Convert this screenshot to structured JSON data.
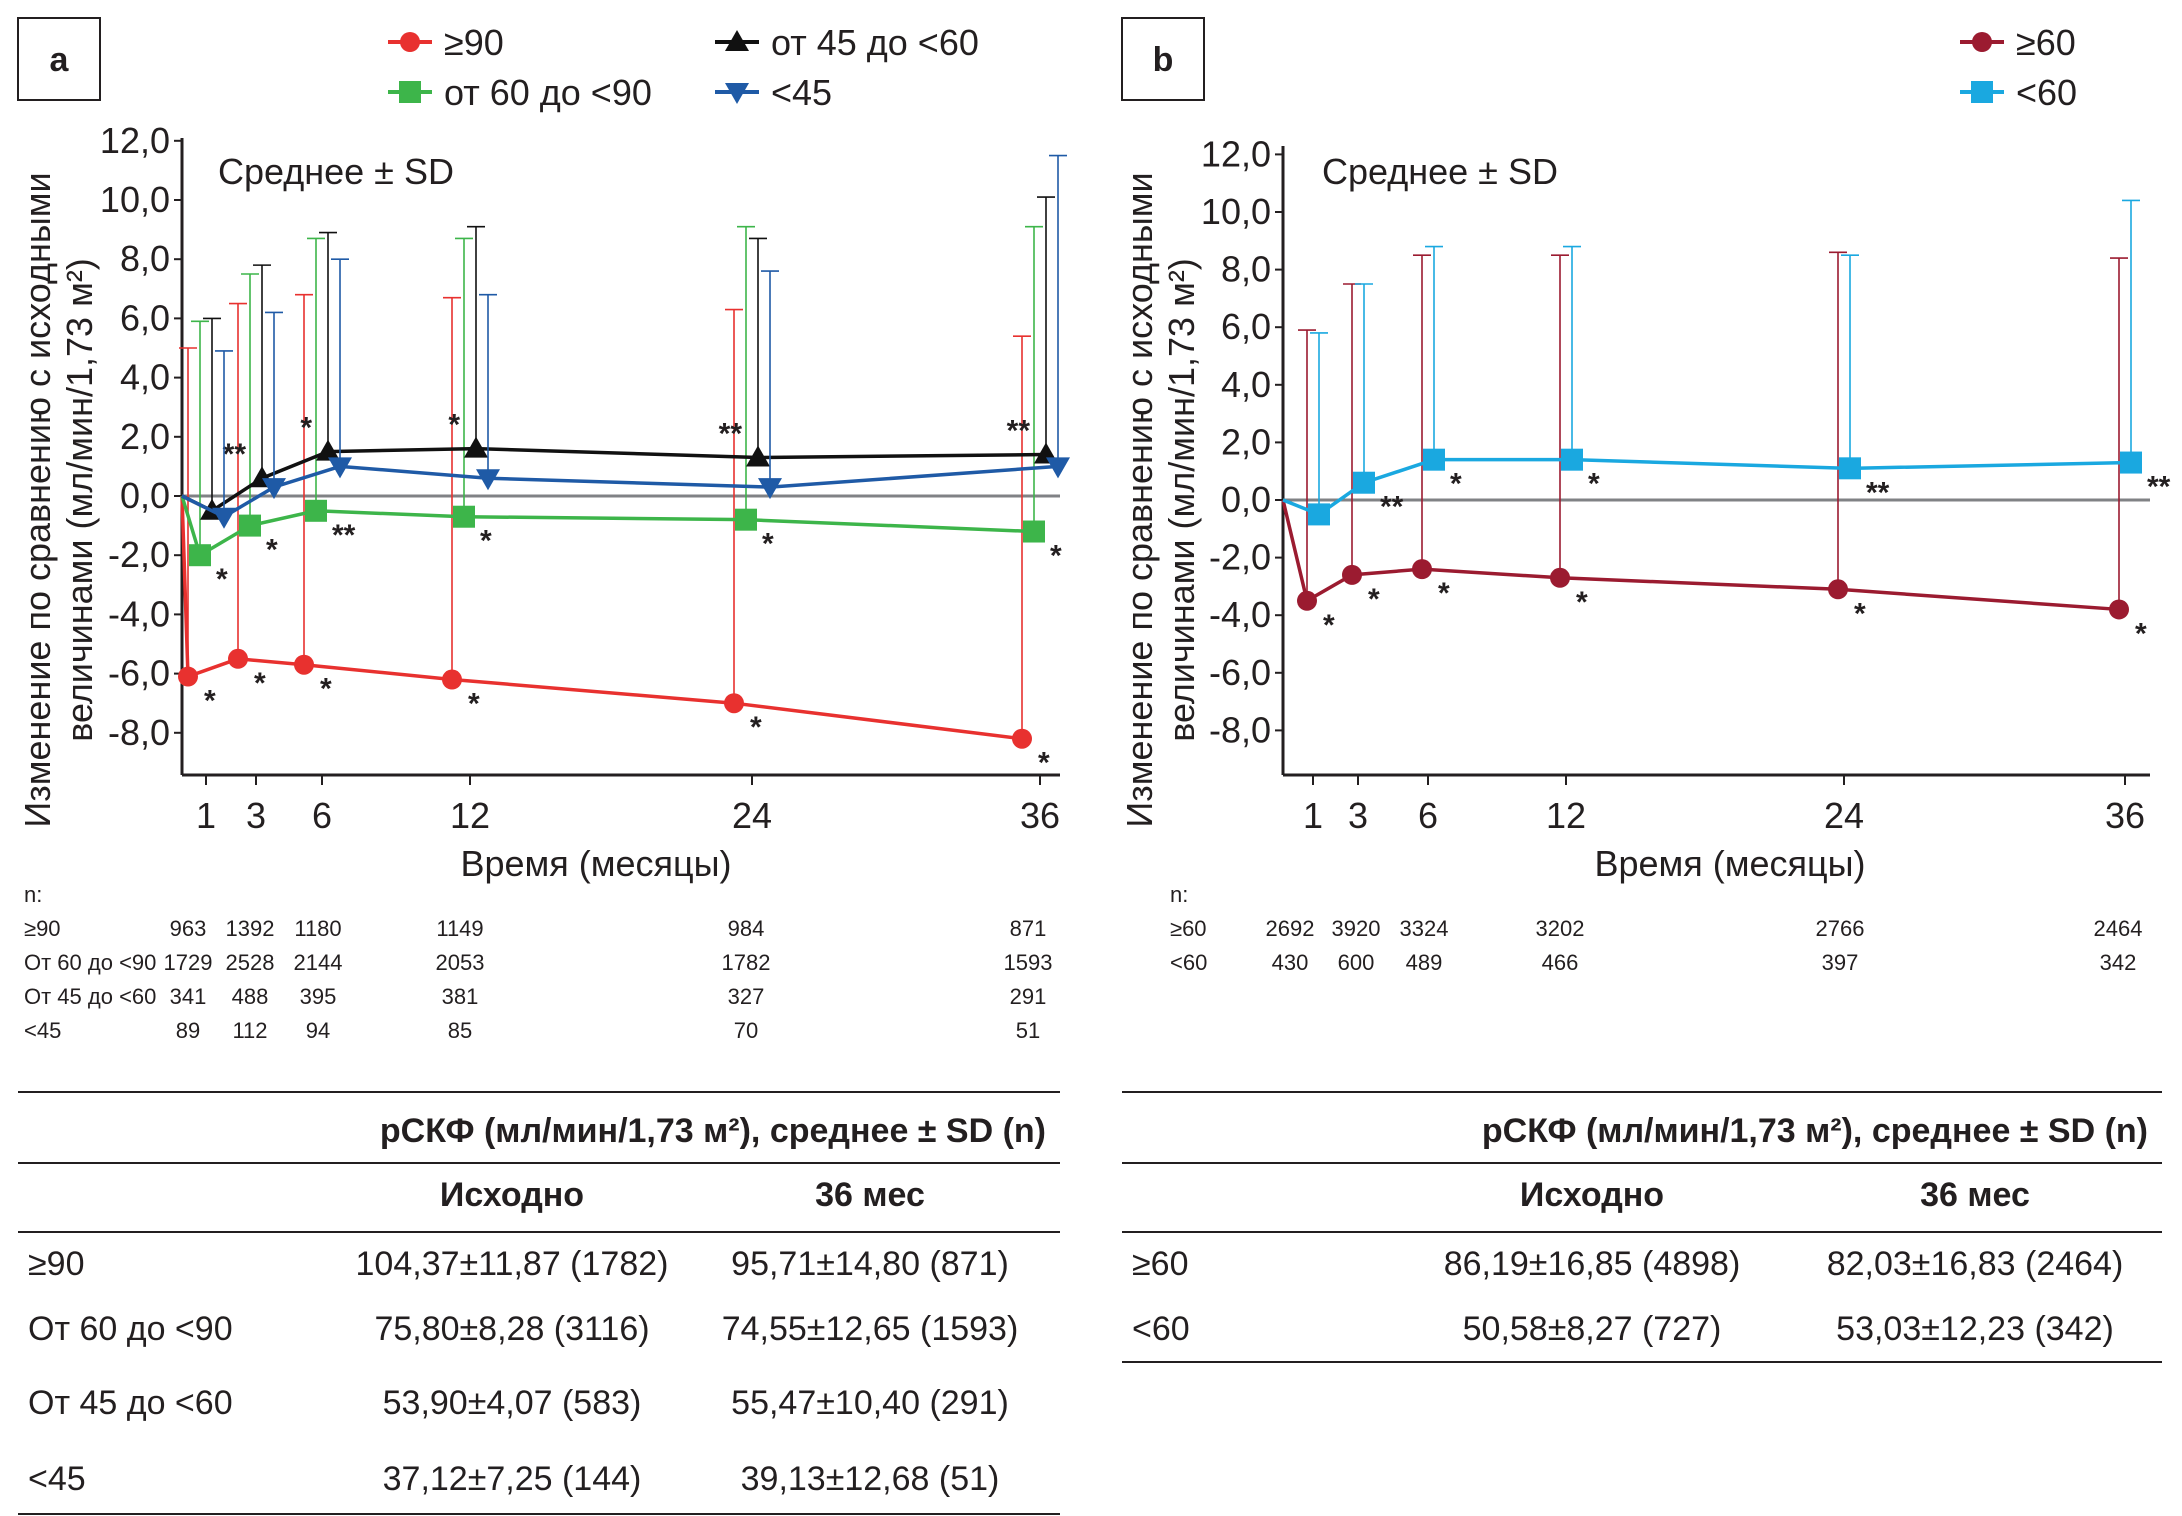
{
  "chart_data": [
    {
      "panel": "a",
      "type": "line",
      "note": "Среднее ± SD",
      "ylabel_line1": "Изменение по сравнению с исходными",
      "ylabel_line2": "величинами (мл/мин/1,73 м²)",
      "xlabel": "Время (месяцы)",
      "x": [
        0,
        1,
        3,
        6,
        12,
        24,
        36
      ],
      "x_ticks": [
        "1",
        "3",
        "6",
        "12",
        "24",
        "36"
      ],
      "ylim": [
        -9.5,
        12.0
      ],
      "y_ticks": [
        "12,0",
        "10,0",
        "8,0",
        "6,0",
        "4,0",
        "2,0",
        "0,0",
        "-2,0",
        "-4,0",
        "-6,0",
        "-8,0"
      ],
      "series": [
        {
          "name": "≥90",
          "color": "#e8312f",
          "marker": "circle",
          "values": [
            0,
            -6.1,
            -5.5,
            -5.7,
            -6.2,
            -7.0,
            -8.2
          ],
          "sd_upper": [
            null,
            5.0,
            6.5,
            6.8,
            6.7,
            6.3,
            5.4
          ],
          "stars": [
            "",
            "*",
            "*",
            "*",
            "*",
            "*",
            "*"
          ]
        },
        {
          "name": "от 60 до <90",
          "color": "#3db54a",
          "marker": "square",
          "values": [
            0,
            -2.0,
            -1.0,
            -0.5,
            -0.7,
            -0.8,
            -1.2
          ],
          "sd_upper": [
            null,
            5.9,
            7.5,
            8.7,
            8.7,
            9.1,
            9.1
          ],
          "stars": [
            "",
            "*",
            "*",
            "**",
            "*",
            "*",
            "*"
          ]
        },
        {
          "name": "от 45 до <60",
          "color": "#111111",
          "marker": "triangle-up",
          "values": [
            0,
            -0.5,
            0.6,
            1.5,
            1.6,
            1.3,
            1.4
          ],
          "sd_upper": [
            null,
            6.0,
            7.8,
            8.9,
            9.1,
            8.7,
            10.1
          ],
          "stars": [
            "",
            "",
            "**",
            "*",
            "*",
            "**",
            "**"
          ]
        },
        {
          "name": "<45",
          "color": "#1f5aa6",
          "marker": "triangle-down",
          "values": [
            0,
            -0.7,
            0.3,
            1.0,
            0.6,
            0.3,
            1.0
          ],
          "sd_upper": [
            null,
            4.9,
            6.2,
            8.0,
            6.8,
            7.6,
            11.5
          ],
          "stars": [
            "",
            "",
            "",
            "",
            "",
            "",
            ""
          ]
        }
      ],
      "n_title": "n:",
      "n_rows": [
        {
          "label": "≥90",
          "values": [
            "963",
            "1392",
            "1180",
            "1149",
            "984",
            "871"
          ]
        },
        {
          "label": "От 60 до <90",
          "values": [
            "1729",
            "2528",
            "2144",
            "2053",
            "1782",
            "1593"
          ]
        },
        {
          "label": "От 45 до <60",
          "values": [
            "341",
            "488",
            "395",
            "381",
            "327",
            "291"
          ]
        },
        {
          "label": "<45",
          "values": [
            "89",
            "112",
            "94",
            "85",
            "70",
            "51"
          ]
        }
      ],
      "table": {
        "title": "рСКФ (мл/мин/1,73 м²), среднее ± SD (n)",
        "col1": "Исходно",
        "col2": "36 мес",
        "rows": [
          {
            "label": "≥90",
            "base": "104,37±11,87 (1782)",
            "m36": "95,71±14,80 (871)"
          },
          {
            "label": "От 60 до <90",
            "base": "75,80±8,28 (3116)",
            "m36": "74,55±12,65 (1593)"
          },
          {
            "label": "От 45 до <60",
            "base": "53,90±4,07 (583)",
            "m36": "55,47±10,40 (291)"
          },
          {
            "label": "<45",
            "base": "37,12±7,25 (144)",
            "m36": "39,13±12,68 (51)"
          }
        ]
      }
    },
    {
      "panel": "b",
      "type": "line",
      "note": "Среднее ± SD",
      "ylabel_line1": "Изменение по сравнению с исходными",
      "ylabel_line2": "величинами (мл/мин/1,73 м²)",
      "xlabel": "Время (месяцы)",
      "x": [
        0,
        1,
        3,
        6,
        12,
        24,
        36
      ],
      "x_ticks": [
        "1",
        "3",
        "6",
        "12",
        "24",
        "36"
      ],
      "ylim": [
        -9.5,
        12.0
      ],
      "y_ticks": [
        "12,0",
        "10,0",
        "8,0",
        "6,0",
        "4,0",
        "2,0",
        "0,0",
        "-2,0",
        "-4,0",
        "-6,0",
        "-8,0"
      ],
      "series": [
        {
          "name": "≥60",
          "color": "#9b1b30",
          "marker": "circle",
          "values": [
            0,
            -3.5,
            -2.6,
            -2.4,
            -2.7,
            -3.1,
            -3.8
          ],
          "sd_upper": [
            null,
            5.9,
            7.5,
            8.5,
            8.5,
            8.6,
            8.4
          ],
          "stars": [
            "",
            "*",
            "*",
            "*",
            "*",
            "*",
            "*"
          ]
        },
        {
          "name": "<60",
          "color": "#1aa8e0",
          "marker": "square",
          "values": [
            0,
            -0.5,
            0.6,
            1.4,
            1.4,
            1.1,
            1.3
          ],
          "sd_upper": [
            null,
            5.8,
            7.5,
            8.8,
            8.8,
            8.5,
            10.4
          ],
          "stars": [
            "",
            "",
            "**",
            "*",
            "*",
            "**",
            "**"
          ]
        }
      ],
      "n_title": "n:",
      "n_rows": [
        {
          "label": "≥60",
          "values": [
            "2692",
            "3920",
            "3324",
            "3202",
            "2766",
            "2464"
          ]
        },
        {
          "label": "<60",
          "values": [
            "430",
            "600",
            "489",
            "466",
            "397",
            "342"
          ]
        }
      ],
      "table": {
        "title": "рСКФ (мл/мин/1,73 м²), среднее ± SD (n)",
        "col1": "Исходно",
        "col2": "36 мес",
        "rows": [
          {
            "label": "≥60",
            "base": "86,19±16,85 (4898)",
            "m36": "82,03±16,83 (2464)"
          },
          {
            "label": "<60",
            "base": "50,58±8,27 (727)",
            "m36": "53,03±12,23 (342)"
          }
        ]
      }
    }
  ]
}
